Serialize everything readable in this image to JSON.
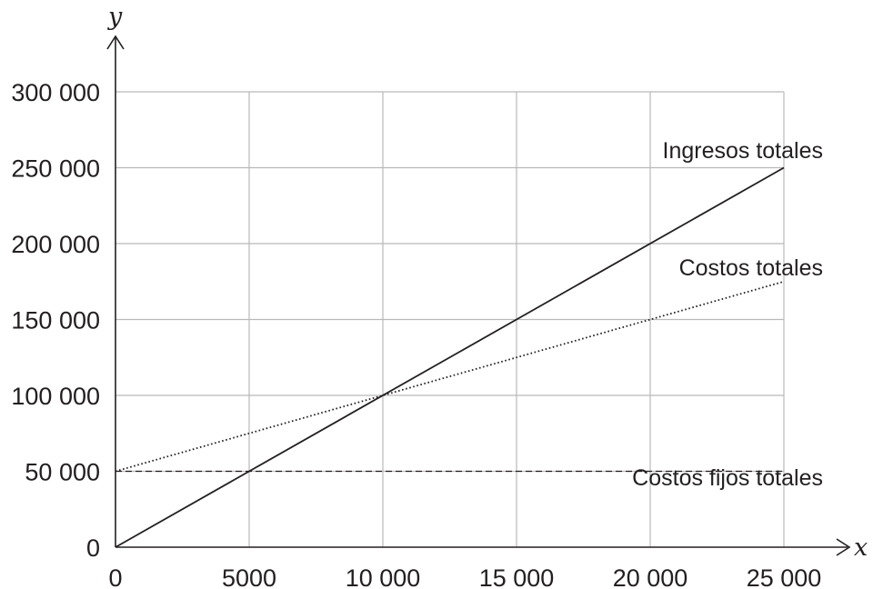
{
  "chart_data": {
    "type": "line",
    "xlabel": "x",
    "ylabel": "y",
    "xlim": [
      0,
      25000
    ],
    "ylim": [
      0,
      300000
    ],
    "x_ticks": [
      0,
      5000,
      10000,
      15000,
      20000,
      25000
    ],
    "y_ticks": [
      0,
      50000,
      100000,
      150000,
      200000,
      250000,
      300000
    ],
    "x_tick_labels": [
      "0",
      "5000",
      "10 000",
      "15 000",
      "20 000",
      "25 000"
    ],
    "y_tick_labels": [
      "0",
      "50 000",
      "100 000",
      "150 000",
      "200 000",
      "250 000",
      "300 000"
    ],
    "grid": true,
    "series": [
      {
        "name": "Ingresos totales",
        "style": "solid",
        "x": [
          0,
          25000
        ],
        "y": [
          0,
          250000
        ]
      },
      {
        "name": "Costos totales",
        "style": "dotted",
        "x": [
          0,
          25000
        ],
        "y": [
          50000,
          175000
        ]
      },
      {
        "name": "Costos fijos totales",
        "style": "dashed",
        "x": [
          0,
          25000
        ],
        "y": [
          50000,
          50000
        ]
      }
    ]
  }
}
